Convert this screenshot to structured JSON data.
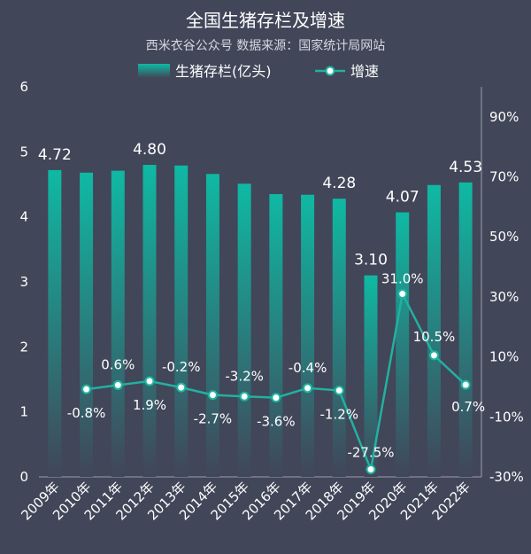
{
  "chart_data": {
    "type": "bar",
    "title": "全国生猪存栏及增速",
    "subtitle": "西米衣谷公众号 数据来源：国家统计局网站",
    "categories": [
      "2009年",
      "2010年",
      "2011年",
      "2012年",
      "2013年",
      "2014年",
      "2015年",
      "2016年",
      "2017年",
      "2018年",
      "2019年",
      "2020年",
      "2021年",
      "2022年"
    ],
    "series": [
      {
        "name": "生猪存栏(亿头)",
        "type": "bar",
        "axis": "left",
        "values": [
          4.72,
          4.68,
          4.71,
          4.8,
          4.79,
          4.66,
          4.51,
          4.35,
          4.34,
          4.28,
          3.1,
          4.07,
          4.49,
          4.53
        ],
        "labels": {
          "0": "4.72",
          "3": "4.80",
          "9": "4.28",
          "10": "3.10",
          "11": "4.07",
          "13": "4.53"
        },
        "color": "#12b8a3"
      },
      {
        "name": "增速",
        "type": "line",
        "axis": "right",
        "values": [
          null,
          -0.8,
          0.6,
          1.9,
          -0.2,
          -2.7,
          -3.2,
          -3.6,
          -0.4,
          -1.2,
          -27.5,
          31.0,
          10.5,
          0.7
        ],
        "labels": [
          "",
          "-0.8%",
          "0.6%",
          "1.9%",
          "-0.2%",
          "-2.7%",
          "-3.2%",
          "-3.6%",
          "-0.4%",
          "-1.2%",
          "-27.5%",
          "31.0%",
          "10.5%",
          "0.7%"
        ],
        "color": "#20b2a0"
      }
    ],
    "y_left": {
      "min": 0,
      "max": 6,
      "ticks": [
        "0",
        "1",
        "2",
        "3",
        "4",
        "5",
        "6"
      ]
    },
    "y_right": {
      "min": -30,
      "max": 100,
      "ticks": [
        "-30%",
        "-10%",
        "10%",
        "30%",
        "50%",
        "70%",
        "90%"
      ]
    },
    "legend": "top-center",
    "grid": false
  },
  "colors": {
    "background": "#414659",
    "bar_top": "#0fb9a3",
    "bar_bottom": "#414659",
    "line": "#20b2a0",
    "marker_fill": "#ffffff",
    "axis": "#9aa0b0"
  }
}
